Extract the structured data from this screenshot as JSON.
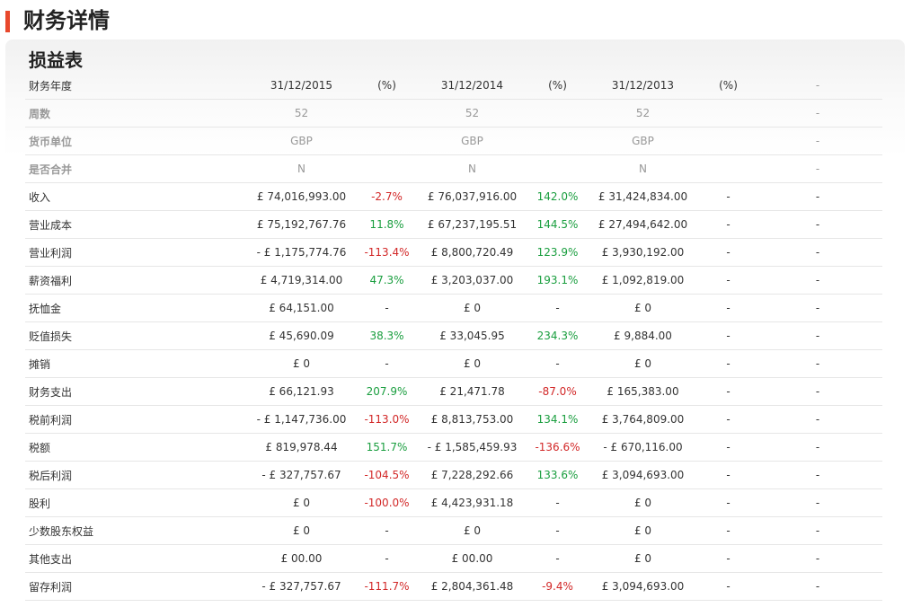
{
  "page_title": "财务详情",
  "section_title": "损益表",
  "colors": {
    "accent": "#e8482c",
    "positive": "#1a9e3f",
    "negative": "#d22828"
  },
  "header": {
    "label": "财务年度",
    "cols": [
      "31/12/2015",
      "(%)",
      "31/12/2014",
      "(%)",
      "31/12/2013",
      "(%)",
      "-"
    ]
  },
  "meta_rows": [
    {
      "label": "周数",
      "cells": [
        "52",
        "",
        "52",
        "",
        "52",
        "",
        "-"
      ]
    },
    {
      "label": "货币单位",
      "cells": [
        "GBP",
        "",
        "GBP",
        "",
        "GBP",
        "",
        "-"
      ]
    },
    {
      "label": "是否合并",
      "cells": [
        "N",
        "",
        "N",
        "",
        "N",
        "",
        "-"
      ]
    }
  ],
  "rows": [
    {
      "label": "收入",
      "v2015": "£ 74,016,993.00",
      "p2015": "-2.7%",
      "s2015": "neg",
      "v2014": "£ 76,037,916.00",
      "p2014": "142.0%",
      "s2014": "pos",
      "v2013": "£ 31,424,834.00",
      "p2013": "-",
      "end": "-"
    },
    {
      "label": "营业成本",
      "v2015": "£ 75,192,767.76",
      "p2015": "11.8%",
      "s2015": "pos",
      "v2014": "£ 67,237,195.51",
      "p2014": "144.5%",
      "s2014": "pos",
      "v2013": "£ 27,494,642.00",
      "p2013": "-",
      "end": "-"
    },
    {
      "label": "营业利润",
      "v2015": "- £ 1,175,774.76",
      "p2015": "-113.4%",
      "s2015": "neg",
      "v2014": "£ 8,800,720.49",
      "p2014": "123.9%",
      "s2014": "pos",
      "v2013": "£ 3,930,192.00",
      "p2013": "-",
      "end": "-"
    },
    {
      "label": "薪资福利",
      "v2015": "£ 4,719,314.00",
      "p2015": "47.3%",
      "s2015": "pos",
      "v2014": "£ 3,203,037.00",
      "p2014": "193.1%",
      "s2014": "pos",
      "v2013": "£ 1,092,819.00",
      "p2013": "-",
      "end": "-"
    },
    {
      "label": "抚恤金",
      "v2015": "£ 64,151.00",
      "p2015": "-",
      "s2015": "neu",
      "v2014": "£ 0",
      "p2014": "-",
      "s2014": "neu",
      "v2013": "£ 0",
      "p2013": "-",
      "end": "-"
    },
    {
      "label": "贬值损失",
      "v2015": "£ 45,690.09",
      "p2015": "38.3%",
      "s2015": "pos",
      "v2014": "£ 33,045.95",
      "p2014": "234.3%",
      "s2014": "pos",
      "v2013": "£ 9,884.00",
      "p2013": "-",
      "end": "-"
    },
    {
      "label": "摊销",
      "v2015": "£ 0",
      "p2015": "-",
      "s2015": "neu",
      "v2014": "£ 0",
      "p2014": "-",
      "s2014": "neu",
      "v2013": "£ 0",
      "p2013": "-",
      "end": "-"
    },
    {
      "label": "财务支出",
      "v2015": "£ 66,121.93",
      "p2015": "207.9%",
      "s2015": "pos",
      "v2014": "£ 21,471.78",
      "p2014": "-87.0%",
      "s2014": "neg",
      "v2013": "£ 165,383.00",
      "p2013": "-",
      "end": "-"
    },
    {
      "label": "税前利润",
      "v2015": "- £ 1,147,736.00",
      "p2015": "-113.0%",
      "s2015": "neg",
      "v2014": "£ 8,813,753.00",
      "p2014": "134.1%",
      "s2014": "pos",
      "v2013": "£ 3,764,809.00",
      "p2013": "-",
      "end": "-"
    },
    {
      "label": "税额",
      "v2015": "£ 819,978.44",
      "p2015": "151.7%",
      "s2015": "pos",
      "v2014": "- £ 1,585,459.93",
      "p2014": "-136.6%",
      "s2014": "neg",
      "v2013": "- £ 670,116.00",
      "p2013": "-",
      "end": "-"
    },
    {
      "label": "税后利润",
      "v2015": "- £ 327,757.67",
      "p2015": "-104.5%",
      "s2015": "neg",
      "v2014": "£ 7,228,292.66",
      "p2014": "133.6%",
      "s2014": "pos",
      "v2013": "£ 3,094,693.00",
      "p2013": "-",
      "end": "-"
    },
    {
      "label": "股利",
      "v2015": "£ 0",
      "p2015": "-100.0%",
      "s2015": "neg",
      "v2014": "£ 4,423,931.18",
      "p2014": "-",
      "s2014": "neu",
      "v2013": "£ 0",
      "p2013": "-",
      "end": "-"
    },
    {
      "label": "少数股东权益",
      "v2015": "£ 0",
      "p2015": "-",
      "s2015": "neu",
      "v2014": "£ 0",
      "p2014": "-",
      "s2014": "neu",
      "v2013": "£ 0",
      "p2013": "-",
      "end": "-"
    },
    {
      "label": "其他支出",
      "v2015": "£ 00.00",
      "p2015": "-",
      "s2015": "neu",
      "v2014": "£ 00.00",
      "p2014": "-",
      "s2014": "neu",
      "v2013": "£ 0",
      "p2013": "-",
      "end": "-"
    },
    {
      "label": "留存利润",
      "v2015": "- £ 327,757.67",
      "p2015": "-111.7%",
      "s2015": "neg",
      "v2014": "£ 2,804,361.48",
      "p2014": "-9.4%",
      "s2014": "neg",
      "v2013": "£ 3,094,693.00",
      "p2013": "-",
      "end": "-"
    }
  ]
}
